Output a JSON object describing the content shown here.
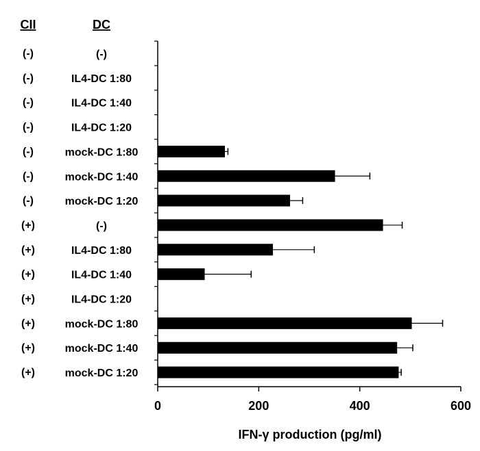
{
  "chart_data": {
    "type": "bar",
    "orientation": "horizontal",
    "column_headers": [
      "CII",
      "DC"
    ],
    "categories": [
      {
        "cii": "(-)",
        "dc": "(-)"
      },
      {
        "cii": "(-)",
        "dc": "IL4-DC 1:80"
      },
      {
        "cii": "(-)",
        "dc": "IL4-DC 1:40"
      },
      {
        "cii": "(-)",
        "dc": "IL4-DC 1:20"
      },
      {
        "cii": "(-)",
        "dc": "mock-DC 1:80"
      },
      {
        "cii": "(-)",
        "dc": "mock-DC 1:40"
      },
      {
        "cii": "(-)",
        "dc": "mock-DC 1:20"
      },
      {
        "cii": "(+)",
        "dc": "(-)"
      },
      {
        "cii": "(+)",
        "dc": "IL4-DC 1:80"
      },
      {
        "cii": "(+)",
        "dc": "IL4-DC 1:40"
      },
      {
        "cii": "(+)",
        "dc": "IL4-DC 1:20"
      },
      {
        "cii": "(+)",
        "dc": "mock-DC 1:80"
      },
      {
        "cii": "(+)",
        "dc": "mock-DC 1:40"
      },
      {
        "cii": "(+)",
        "dc": "mock-DC 1:20"
      }
    ],
    "values": [
      0,
      0,
      0,
      0,
      133,
      351,
      262,
      446,
      228,
      93,
      0,
      503,
      474,
      477
    ],
    "errors": [
      0,
      0,
      0,
      0,
      6,
      69,
      25,
      38,
      82,
      92,
      0,
      61,
      31,
      5
    ],
    "xlabel": "IFN-γ production (pg/ml)",
    "xlim": [
      0,
      600
    ],
    "xticks": [
      0,
      200,
      400,
      600
    ],
    "bar_color": "#000000",
    "grid": false
  }
}
